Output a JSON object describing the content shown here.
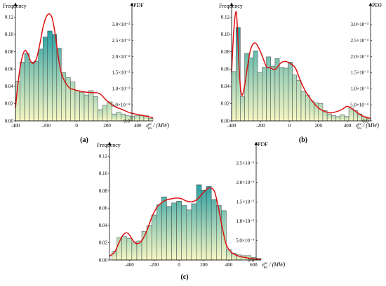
{
  "colors": {
    "bar_high": "#2a9fa3",
    "bar_mid": "#8fcbb5",
    "bar_low": "#f7f7c4",
    "bar_stroke": "#444444",
    "pdf_curve": "#dd1111",
    "axis": "#000000"
  },
  "chart_data": [
    {
      "type": "bar",
      "panel_label": "(a)",
      "ylabel_left": "Frequency",
      "ylabel_right": "PDF",
      "xlabel_symbol": "ε",
      "xlabel_super": "pv",
      "xlabel_sub": "Ws",
      "xlabel_unit": "/ (MW)",
      "xlim": [
        -400,
        500
      ],
      "ylim_left": [
        0,
        0.13
      ],
      "ylim_right": [
        0,
        0.0035
      ],
      "x_ticks": [
        "-400",
        "-200",
        "0",
        "200",
        "400"
      ],
      "x_tick_values": [
        -400,
        -200,
        0,
        200,
        400
      ],
      "y_left_ticks": [
        "0.00",
        "0.02",
        "0.04",
        "0.06",
        "0.08",
        "0.10",
        "0.12"
      ],
      "y_left_tick_values": [
        0,
        0.02,
        0.04,
        0.06,
        0.08,
        0.1,
        0.12
      ],
      "y_right_ticks": [
        "0.0",
        "5.0×10⁻⁴",
        "1.0×10⁻³",
        "1.5×10⁻³",
        "2.0×10⁻³",
        "2.5×10⁻³",
        "3.0×10⁻³"
      ],
      "y_right_tick_values": [
        0,
        0.0005,
        0.001,
        0.0015,
        0.002,
        0.0025,
        0.003
      ],
      "bin_width": 30,
      "bin_centers": [
        -385,
        -355,
        -325,
        -295,
        -265,
        -235,
        -205,
        -175,
        -145,
        -115,
        -85,
        -55,
        -25,
        5,
        35,
        65,
        95,
        125,
        155,
        185,
        215,
        245,
        275,
        305,
        335,
        365,
        395,
        425,
        455,
        485
      ],
      "bar_values": [
        0.046,
        0.068,
        0.078,
        0.068,
        0.069,
        0.083,
        0.097,
        0.104,
        0.1,
        0.084,
        0.056,
        0.05,
        0.045,
        0.035,
        0.033,
        0.03,
        0.035,
        0.028,
        0.013,
        0.018,
        0.022,
        0.008,
        0.01,
        0.008,
        0.006,
        0.005,
        0.006,
        0.006,
        0.006,
        0.003
      ],
      "pdf_x": [
        -400,
        -380,
        -360,
        -340,
        -320,
        -300,
        -280,
        -260,
        -240,
        -220,
        -200,
        -180,
        -160,
        -140,
        -120,
        -100,
        -80,
        -60,
        -40,
        -20,
        0,
        50,
        100,
        150,
        200,
        250,
        300,
        350,
        400,
        450,
        500
      ],
      "pdf_y": [
        0.0004,
        0.0013,
        0.0019,
        0.00218,
        0.0021,
        0.00185,
        0.0018,
        0.00198,
        0.0024,
        0.0029,
        0.00322,
        0.00333,
        0.0032,
        0.0027,
        0.002,
        0.0015,
        0.00125,
        0.0011,
        0.001,
        0.00098,
        0.00095,
        0.0009,
        0.00088,
        0.00085,
        0.00062,
        0.00045,
        0.00035,
        0.00025,
        0.0002,
        0.00015,
        0.0001
      ]
    },
    {
      "type": "bar",
      "panel_label": "(b)",
      "ylabel_left": "Frequency",
      "ylabel_right": "PDF",
      "xlabel_symbol": "ε",
      "xlabel_super": "pv",
      "xlabel_sub": "Ws",
      "xlabel_unit": "/ (MW)",
      "xlim": [
        -400,
        560
      ],
      "ylim_left": [
        0,
        0.13
      ],
      "ylim_right": [
        0,
        0.0035
      ],
      "x_ticks": [
        "-400",
        "-200",
        "0",
        "200",
        "400"
      ],
      "x_tick_values": [
        -400,
        -200,
        0,
        200,
        400
      ],
      "y_left_ticks": [
        "0.00",
        "0.02",
        "0.04",
        "0.06",
        "0.08",
        "0.10",
        "0.12"
      ],
      "y_left_tick_values": [
        0,
        0.02,
        0.04,
        0.06,
        0.08,
        0.1,
        0.12
      ],
      "y_right_ticks": [
        "0.0",
        "5.0×10⁻⁴",
        "1.0×10⁻³",
        "1.5×10⁻³",
        "2.0×10⁻³",
        "2.5×10⁻³",
        "3.0×10⁻³"
      ],
      "y_right_tick_values": [
        0,
        0.0005,
        0.001,
        0.0015,
        0.002,
        0.0025,
        0.003
      ],
      "bin_width": 30,
      "bin_centers": [
        -385,
        -355,
        -325,
        -295,
        -265,
        -235,
        -205,
        -175,
        -145,
        -115,
        -85,
        -55,
        -25,
        5,
        35,
        65,
        95,
        125,
        155,
        185,
        215,
        245,
        275,
        305,
        335,
        365,
        395,
        425,
        455,
        485,
        515,
        545
      ],
      "bar_values": [
        0.057,
        0.108,
        0.028,
        0.078,
        0.073,
        0.081,
        0.056,
        0.062,
        0.074,
        0.063,
        0.072,
        0.062,
        0.061,
        0.068,
        0.053,
        0.047,
        0.034,
        0.03,
        0.023,
        0.021,
        0.02,
        0.012,
        0.008,
        0.006,
        0.005,
        0.007,
        0.005,
        0.015,
        0.012,
        0.008,
        0.005,
        0.003
      ],
      "pdf_x": [
        -400,
        -385,
        -370,
        -360,
        -345,
        -330,
        -310,
        -290,
        -270,
        -250,
        -230,
        -200,
        -160,
        -130,
        -100,
        -60,
        -30,
        0,
        40,
        80,
        120,
        160,
        200,
        240,
        280,
        320,
        360,
        400,
        440,
        480,
        520,
        560
      ],
      "pdf_y": [
        0.0015,
        0.0028,
        0.0034,
        0.0029,
        0.0014,
        0.0008,
        0.0011,
        0.0017,
        0.0022,
        0.0024,
        0.0024,
        0.00215,
        0.0017,
        0.00165,
        0.0016,
        0.0018,
        0.00185,
        0.0018,
        0.00165,
        0.0012,
        0.00085,
        0.0006,
        0.0004,
        0.0003,
        0.00025,
        0.00028,
        0.00035,
        0.00045,
        0.00035,
        0.00022,
        0.00012,
        8e-05
      ]
    },
    {
      "type": "bar",
      "panel_label": "(c)",
      "ylabel_left": "Frequency",
      "ylabel_right": "PDF",
      "xlabel_symbol": "ε",
      "xlabel_super": "pv",
      "xlabel_sub": "Ws",
      "xlabel_unit": "/ (MW)",
      "xlim": [
        -560,
        660
      ],
      "ylim_left": [
        0,
        0.13
      ],
      "ylim_right": [
        0,
        0.0029
      ],
      "x_ticks": [
        "-400",
        "-200",
        "0",
        "200",
        "400",
        "600"
      ],
      "x_tick_values": [
        -400,
        -200,
        0,
        200,
        400,
        600
      ],
      "y_left_ticks": [
        "0.00",
        "0.02",
        "0.04",
        "0.06",
        "0.08",
        "0.10",
        "0.12"
      ],
      "y_left_tick_values": [
        0,
        0.02,
        0.04,
        0.06,
        0.08,
        0.1,
        0.12
      ],
      "y_right_ticks": [
        "0.0",
        "5.0×10⁻⁴",
        "1.0×10⁻³",
        "1.5×10⁻³",
        "2.0×10⁻³",
        "2.5×10⁻³"
      ],
      "y_right_tick_values": [
        0,
        0.0005,
        0.001,
        0.0015,
        0.002,
        0.0025
      ],
      "bin_width": 40,
      "bin_centers": [
        -520,
        -480,
        -440,
        -400,
        -360,
        -320,
        -280,
        -240,
        -200,
        -160,
        -120,
        -80,
        -40,
        0,
        40,
        80,
        120,
        160,
        200,
        240,
        280,
        320,
        360,
        400,
        440,
        480,
        520,
        560,
        600,
        640
      ],
      "bar_values": [
        0.01,
        0.026,
        0.027,
        0.025,
        0.021,
        0.022,
        0.033,
        0.04,
        0.052,
        0.064,
        0.073,
        0.062,
        0.066,
        0.068,
        0.063,
        0.058,
        0.065,
        0.087,
        0.081,
        0.085,
        0.07,
        0.063,
        0.057,
        0.012,
        0.008,
        0.006,
        0.005,
        0.005,
        0.003,
        0.002
      ],
      "pdf_x": [
        -560,
        -520,
        -490,
        -460,
        -440,
        -420,
        -400,
        -370,
        -340,
        -300,
        -260,
        -220,
        -180,
        -140,
        -100,
        -60,
        -20,
        20,
        60,
        100,
        140,
        180,
        220,
        250,
        280,
        300,
        320,
        350,
        380,
        420,
        480,
        540,
        600,
        660
      ],
      "pdf_y": [
        0.0001,
        0.0002,
        0.0004,
        0.0006,
        0.00068,
        0.0007,
        0.00065,
        0.0005,
        0.00042,
        0.0005,
        0.00075,
        0.0011,
        0.00135,
        0.00148,
        0.00155,
        0.00158,
        0.0016,
        0.00158,
        0.00152,
        0.0015,
        0.00155,
        0.00168,
        0.00182,
        0.00186,
        0.0018,
        0.0016,
        0.0013,
        0.0008,
        0.0004,
        0.0002,
        0.0001,
        6e-05,
        3e-05,
        1e-05
      ]
    }
  ]
}
